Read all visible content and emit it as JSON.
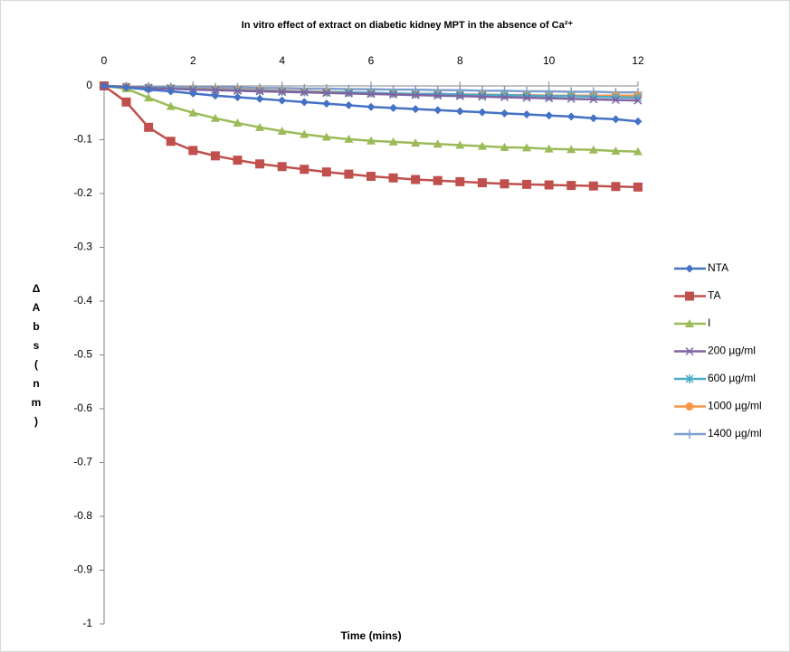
{
  "chart_data": {
    "type": "line",
    "title": "In vitro effect of extract on diabetic kidney MPT in the absence of Ca²⁺",
    "x_label": "Time (mins)",
    "y_label": "ΔAbs (nm)",
    "x": [
      0,
      0.5,
      1,
      1.5,
      2,
      2.5,
      3,
      3.5,
      4,
      4.5,
      5,
      5.5,
      6,
      6.5,
      7,
      7.5,
      8,
      8.5,
      9,
      9.5,
      10,
      10.5,
      11,
      11.5,
      12
    ],
    "xlim": [
      0,
      12
    ],
    "xticks": [
      0,
      2,
      4,
      6,
      8,
      10,
      12
    ],
    "ylim": [
      -1,
      0
    ],
    "yticks": [
      0,
      -0.1,
      -0.2,
      -0.3,
      -0.4,
      -0.5,
      -0.6,
      -0.7,
      -0.8,
      -0.9,
      -1
    ],
    "grid": false,
    "legend": "right",
    "series": [
      {
        "name": "NTA",
        "color": "#4572c4",
        "marker": "diamond",
        "values": [
          0,
          -0.003,
          -0.007,
          -0.01,
          -0.014,
          -0.018,
          -0.021,
          -0.024,
          -0.027,
          -0.03,
          -0.033,
          -0.036,
          -0.039,
          -0.041,
          -0.043,
          -0.045,
          -0.047,
          -0.049,
          -0.051,
          -0.053,
          -0.055,
          -0.057,
          -0.06,
          -0.062,
          -0.066
        ]
      },
      {
        "name": "TA",
        "color": "#c0504d",
        "marker": "square",
        "values": [
          0,
          -0.03,
          -0.077,
          -0.103,
          -0.12,
          -0.13,
          -0.138,
          -0.145,
          -0.15,
          -0.155,
          -0.16,
          -0.164,
          -0.168,
          -0.171,
          -0.174,
          -0.176,
          -0.178,
          -0.18,
          -0.182,
          -0.183,
          -0.184,
          -0.185,
          -0.186,
          -0.187,
          -0.188
        ]
      },
      {
        "name": "I",
        "color": "#9bbb59",
        "marker": "triangle",
        "values": [
          0,
          -0.005,
          -0.022,
          -0.038,
          -0.05,
          -0.06,
          -0.069,
          -0.077,
          -0.084,
          -0.09,
          -0.095,
          -0.099,
          -0.102,
          -0.104,
          -0.106,
          -0.108,
          -0.11,
          -0.112,
          -0.114,
          -0.115,
          -0.117,
          -0.118,
          -0.119,
          -0.121,
          -0.122
        ]
      },
      {
        "name": "200 µg/ml",
        "color": "#8064a2",
        "marker": "x",
        "values": [
          0,
          -0.002,
          -0.004,
          -0.005,
          -0.007,
          -0.008,
          -0.009,
          -0.01,
          -0.011,
          -0.012,
          -0.013,
          -0.014,
          -0.015,
          -0.016,
          -0.017,
          -0.018,
          -0.019,
          -0.02,
          -0.021,
          -0.022,
          -0.023,
          -0.024,
          -0.025,
          -0.026,
          -0.027
        ]
      },
      {
        "name": "600 µg/ml",
        "color": "#4bacc6",
        "marker": "star",
        "values": [
          0,
          -0.002,
          -0.003,
          -0.004,
          -0.006,
          -0.007,
          -0.008,
          -0.009,
          -0.01,
          -0.011,
          -0.012,
          -0.012,
          -0.013,
          -0.014,
          -0.015,
          -0.015,
          -0.016,
          -0.017,
          -0.017,
          -0.018,
          -0.019,
          -0.019,
          -0.02,
          -0.021,
          -0.022
        ]
      },
      {
        "name": "1000 µg/ml",
        "color": "#f79646",
        "marker": "circle",
        "values": [
          0,
          -0.001,
          -0.003,
          -0.004,
          -0.005,
          -0.006,
          -0.007,
          -0.008,
          -0.009,
          -0.01,
          -0.011,
          -0.012,
          -0.013,
          -0.014,
          -0.015,
          -0.015,
          -0.016,
          -0.016,
          -0.017,
          -0.017,
          -0.018,
          -0.018,
          -0.018,
          -0.018,
          -0.018
        ]
      },
      {
        "name": "1400 µg/ml",
        "color": "#7f9fd1",
        "marker": "plus",
        "values": [
          0,
          -0.001,
          -0.001,
          -0.002,
          -0.002,
          -0.003,
          -0.003,
          -0.004,
          -0.004,
          -0.005,
          -0.005,
          -0.006,
          -0.006,
          -0.007,
          -0.007,
          -0.008,
          -0.008,
          -0.009,
          -0.009,
          -0.01,
          -0.01,
          -0.011,
          -0.011,
          -0.012,
          -0.012
        ]
      }
    ]
  }
}
